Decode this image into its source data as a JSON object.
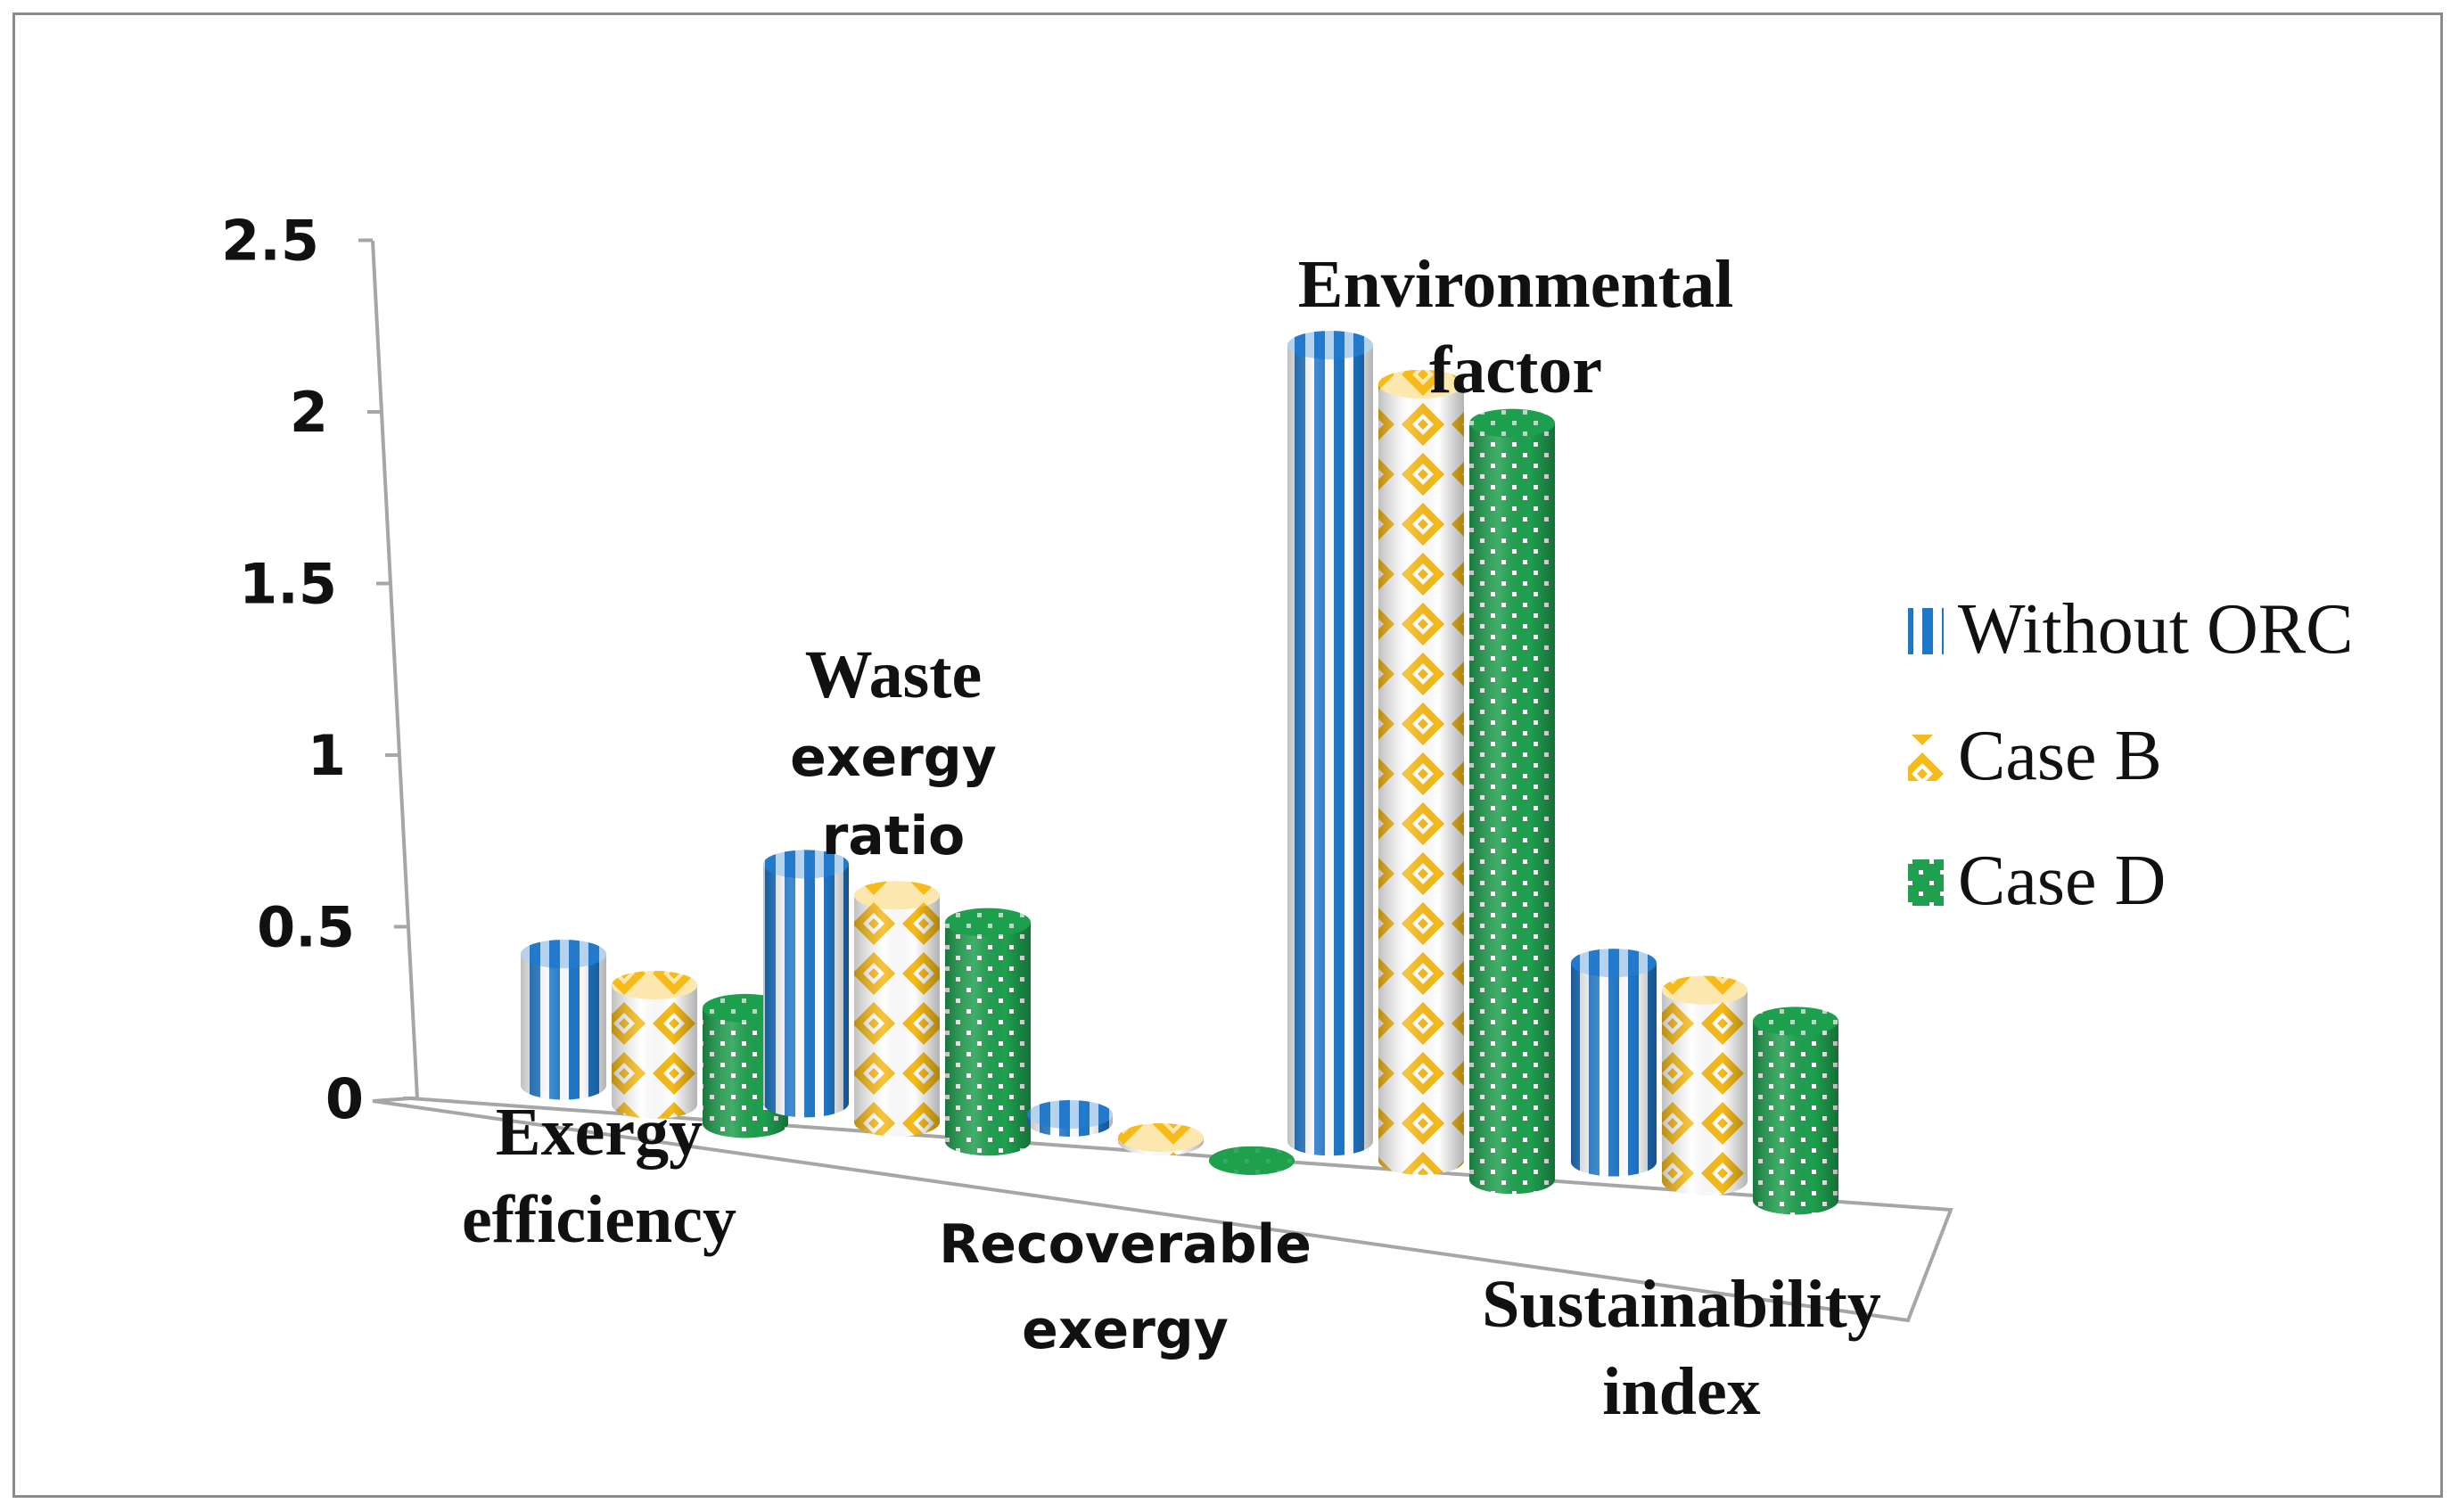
{
  "chart_data": {
    "type": "bar",
    "title": "",
    "xlabel": "",
    "ylabel": "",
    "ylim": [
      0,
      2.5
    ],
    "yticks": [
      "0",
      "0.5",
      "1",
      "1.5",
      "2",
      "2.5"
    ],
    "categories": [
      [
        "Exergy",
        "efficiency"
      ],
      [
        "Waste",
        "exergy",
        "ratio"
      ],
      [
        "Recoverable",
        "exergy"
      ],
      [
        "Environmental",
        "factor"
      ],
      [
        "Sustainability",
        "index"
      ]
    ],
    "series": [
      {
        "name": "Without ORC",
        "values": [
          0.33,
          0.6,
          0.02,
          2.0,
          0.5
        ],
        "color": "#1f77c8",
        "pattern": "vertical-stripes"
      },
      {
        "name": "Case B",
        "values": [
          0.3,
          0.57,
          0.01,
          1.95,
          0.48
        ],
        "color": "#f6bb1a",
        "pattern": "diamonds"
      },
      {
        "name": "Case D",
        "values": [
          0.29,
          0.55,
          0.0,
          1.9,
          0.45
        ],
        "color": "#1ea04e",
        "pattern": "dots"
      }
    ],
    "legend_position": "right"
  }
}
